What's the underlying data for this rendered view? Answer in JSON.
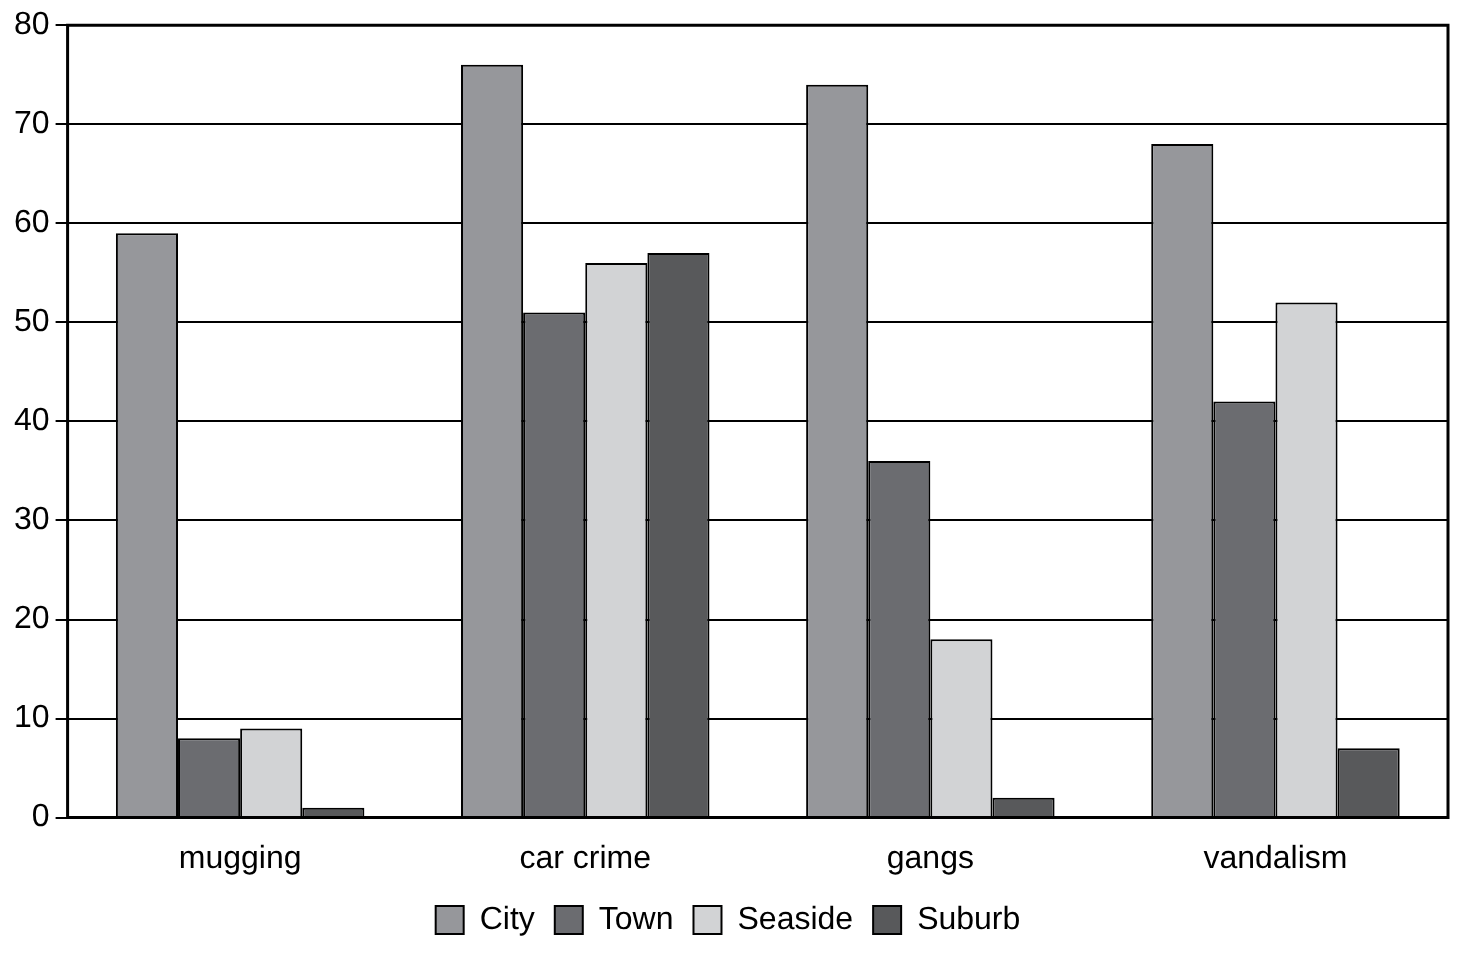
{
  "chart_data": {
    "type": "bar",
    "categories": [
      "mugging",
      "car crime",
      "gangs",
      "vandalism"
    ],
    "series": [
      {
        "name": "City",
        "color": "#96979b",
        "values": [
          59,
          76,
          74,
          68
        ]
      },
      {
        "name": "Town",
        "color": "#6b6c70",
        "values": [
          8,
          51,
          36,
          42
        ]
      },
      {
        "name": "Seaside",
        "color": "#d2d3d5",
        "values": [
          9,
          56,
          18,
          52
        ]
      },
      {
        "name": "Suburb",
        "color": "#58595b",
        "values": [
          1,
          57,
          2,
          7
        ]
      }
    ],
    "ylim": [
      0,
      80
    ],
    "yticks": [
      0,
      10,
      20,
      30,
      40,
      50,
      60,
      70,
      80
    ],
    "grid": "y",
    "legend": "bottom"
  }
}
